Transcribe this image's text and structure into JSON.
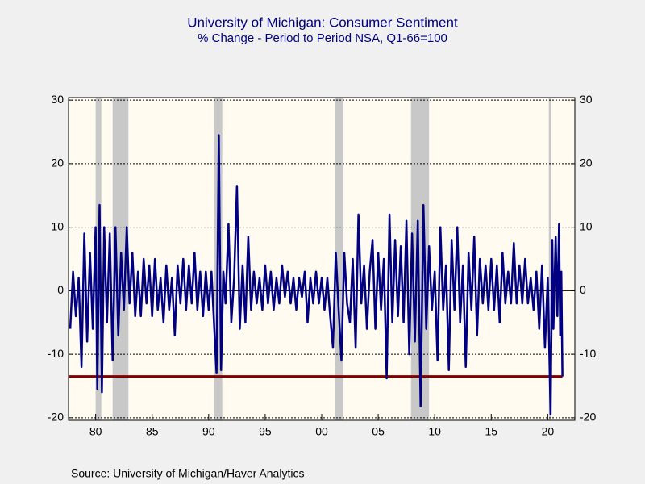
{
  "chart_data": {
    "type": "line",
    "title": "University of Michigan: Consumer Sentiment",
    "subtitle": "% Change - Period to Period    NSA, Q1-66=100",
    "source": "Source:  University of Michigan/Haver Analytics",
    "xlim": [
      1977.6,
      2022.4
    ],
    "ylim": [
      -20.4,
      30.4
    ],
    "xticks": [
      {
        "value": 1980,
        "label": "80"
      },
      {
        "value": 1985,
        "label": "85"
      },
      {
        "value": 1990,
        "label": "90"
      },
      {
        "value": 1995,
        "label": "95"
      },
      {
        "value": 2000,
        "label": "00"
      },
      {
        "value": 2005,
        "label": "05"
      },
      {
        "value": 2010,
        "label": "10"
      },
      {
        "value": 2015,
        "label": "15"
      },
      {
        "value": 2020,
        "label": "20"
      }
    ],
    "yticks": [
      -20,
      -10,
      0,
      10,
      20,
      30
    ],
    "grid": true,
    "right_axis": true,
    "shaded_periods": [
      [
        1980.0,
        1980.5
      ],
      [
        1981.5,
        1982.9
      ],
      [
        1990.5,
        1991.2
      ],
      [
        2001.2,
        2001.9
      ],
      [
        2007.9,
        2009.5
      ],
      [
        2020.1,
        2020.3
      ]
    ],
    "shade_color": "#c8c8c8",
    "reference_line": {
      "value": -13.5,
      "color": "#800000"
    },
    "x": [
      1977.75,
      1978.0,
      1978.25,
      1978.5,
      1978.75,
      1979.0,
      1979.25,
      1979.5,
      1979.75,
      1980.0,
      1980.15,
      1980.35,
      1980.55,
      1980.75,
      1981.0,
      1981.25,
      1981.5,
      1981.75,
      1982.0,
      1982.25,
      1982.5,
      1982.75,
      1983.0,
      1983.25,
      1983.5,
      1983.75,
      1984.0,
      1984.25,
      1984.5,
      1984.75,
      1985.0,
      1985.25,
      1985.5,
      1985.75,
      1986.0,
      1986.25,
      1986.5,
      1986.75,
      1987.0,
      1987.25,
      1987.5,
      1987.75,
      1988.0,
      1988.25,
      1988.5,
      1988.75,
      1989.0,
      1989.25,
      1989.5,
      1989.75,
      1990.0,
      1990.25,
      1990.5,
      1990.7,
      1990.9,
      1991.1,
      1991.3,
      1991.5,
      1991.75,
      1992.0,
      1992.25,
      1992.5,
      1992.75,
      1993.0,
      1993.25,
      1993.5,
      1993.75,
      1994.0,
      1994.25,
      1994.5,
      1994.75,
      1995.0,
      1995.25,
      1995.5,
      1995.75,
      1996.0,
      1996.25,
      1996.5,
      1996.75,
      1997.0,
      1997.25,
      1997.5,
      1997.75,
      1998.0,
      1998.25,
      1998.5,
      1998.75,
      1999.0,
      1999.25,
      1999.5,
      1999.75,
      2000.0,
      2000.25,
      2000.5,
      2000.75,
      2001.0,
      2001.25,
      2001.5,
      2001.75,
      2002.0,
      2002.25,
      2002.5,
      2002.75,
      2003.0,
      2003.25,
      2003.5,
      2003.75,
      2004.0,
      2004.25,
      2004.5,
      2004.75,
      2005.0,
      2005.25,
      2005.5,
      2005.75,
      2006.0,
      2006.25,
      2006.5,
      2006.75,
      2007.0,
      2007.25,
      2007.5,
      2007.75,
      2008.0,
      2008.25,
      2008.5,
      2008.75,
      2009.0,
      2009.25,
      2009.5,
      2009.75,
      2010.0,
      2010.25,
      2010.5,
      2010.75,
      2011.0,
      2011.25,
      2011.5,
      2011.75,
      2012.0,
      2012.25,
      2012.5,
      2012.75,
      2013.0,
      2013.25,
      2013.5,
      2013.75,
      2014.0,
      2014.25,
      2014.5,
      2014.75,
      2015.0,
      2015.25,
      2015.5,
      2015.75,
      2016.0,
      2016.25,
      2016.5,
      2016.75,
      2017.0,
      2017.25,
      2017.5,
      2017.75,
      2018.0,
      2018.25,
      2018.5,
      2018.75,
      2019.0,
      2019.25,
      2019.5,
      2019.75,
      2020.0,
      2020.25,
      2020.4,
      2020.5,
      2020.7,
      2020.85,
      2021.0,
      2021.1,
      2021.2,
      2021.3
    ],
    "series": [
      {
        "color": "#000080",
        "values": [
          -6,
          3,
          -4,
          2,
          -12,
          9,
          -8,
          6,
          -6,
          10,
          -15.5,
          13.5,
          -16,
          10,
          -5,
          9,
          -11,
          10,
          -7,
          6,
          -3,
          10,
          -2,
          6,
          -4,
          3,
          -4,
          5,
          -2,
          4,
          -4,
          5,
          -3,
          2,
          -5,
          4,
          -3,
          2,
          -7,
          4,
          -2,
          5,
          -3,
          4,
          -2,
          6,
          -3,
          3,
          -4,
          3,
          -3,
          3,
          -6,
          -13,
          24.5,
          -12.5,
          3,
          -2,
          10.5,
          -5,
          2,
          16.5,
          -6,
          4,
          -5,
          8.5,
          -3,
          3,
          -2,
          2,
          -3,
          4,
          -2,
          3,
          -3,
          2,
          -2,
          4,
          -1,
          3,
          -2,
          2,
          -3,
          2,
          -1,
          3,
          -5,
          2,
          -2,
          3,
          -2,
          2,
          -3,
          2,
          -4,
          -9,
          6,
          -3,
          -11,
          6,
          -2,
          -5,
          5,
          -9,
          12,
          -2,
          4,
          -6,
          3,
          8,
          -6,
          6,
          -3,
          5,
          -13.8,
          12,
          -5,
          8,
          -4,
          7,
          -5,
          11,
          -10,
          9,
          -8,
          11,
          -18.2,
          13.5,
          -6,
          7,
          -3,
          3,
          -11,
          10,
          -3,
          4,
          -12.5,
          8,
          -3,
          10,
          -5,
          4,
          -12,
          6,
          -3,
          8.5,
          -7,
          5,
          -2,
          4,
          -3,
          5,
          -3,
          4,
          -5,
          6,
          -2,
          3,
          -2,
          7.5,
          -2,
          4,
          -2,
          5,
          -2,
          2,
          -3,
          3,
          -6,
          4,
          -9,
          2,
          -19.5,
          8,
          -6,
          8.5,
          -4,
          10.5,
          -7,
          3,
          -13.5
        ]
      }
    ]
  }
}
